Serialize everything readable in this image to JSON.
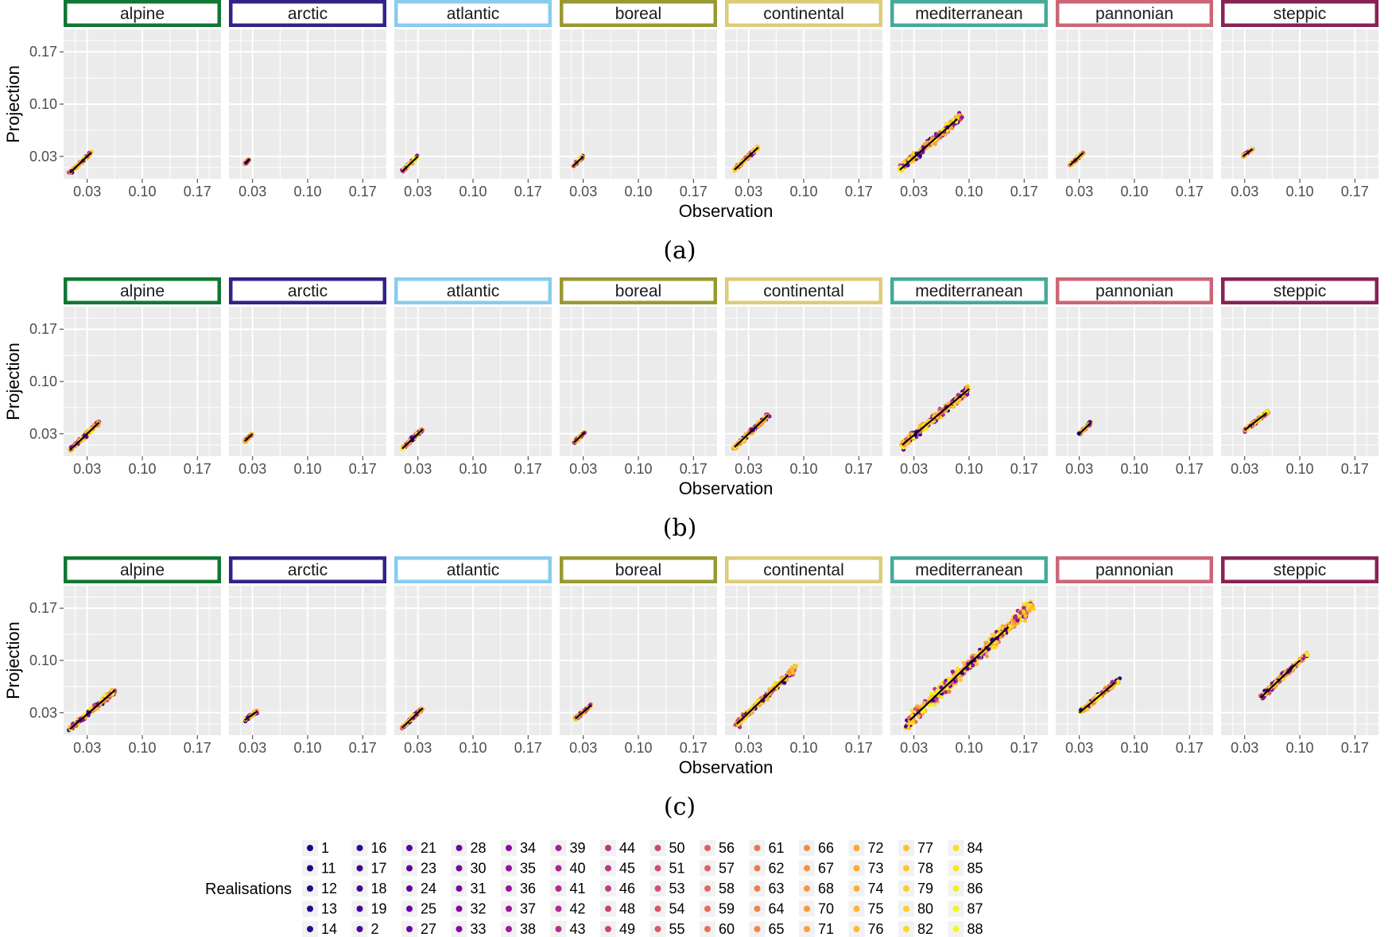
{
  "figure": {
    "xlabel": "Observation",
    "ylabel": "Projection",
    "captions": [
      "(a)",
      "(b)",
      "(c)"
    ]
  },
  "colors": {
    "panel_bg": "#ebebeb",
    "grid": "#ffffff",
    "fit_line": "#000000",
    "regions": {
      "alpine": "#117733",
      "arctic": "#332288",
      "atlantic": "#88ccee",
      "boreal": "#999933",
      "continental": "#ddcc77",
      "mediterranean": "#44aa99",
      "pannonian": "#cc6677",
      "steppic": "#882255"
    }
  },
  "legend": {
    "title": "Realisations",
    "columns": [
      [
        "1",
        "11",
        "12",
        "13",
        "14"
      ],
      [
        "16",
        "17",
        "18",
        "19",
        "2"
      ],
      [
        "21",
        "23",
        "24",
        "25",
        "27"
      ],
      [
        "28",
        "30",
        "31",
        "32",
        "33"
      ],
      [
        "34",
        "35",
        "36",
        "37",
        "38"
      ],
      [
        "39",
        "40",
        "41",
        "42",
        "43"
      ],
      [
        "44",
        "45",
        "46",
        "48",
        "49"
      ],
      [
        "50",
        "51",
        "53",
        "54",
        "55"
      ],
      [
        "56",
        "57",
        "58",
        "59",
        "60"
      ],
      [
        "61",
        "62",
        "63",
        "64",
        "65"
      ],
      [
        "66",
        "67",
        "68",
        "70",
        "71"
      ],
      [
        "72",
        "73",
        "74",
        "75",
        "76"
      ],
      [
        "77",
        "78",
        "79",
        "80",
        "82"
      ],
      [
        "84",
        "85",
        "86",
        "87",
        "88"
      ]
    ]
  },
  "chart_data": [
    {
      "type": "scatter",
      "caption": "(a)",
      "xlabel": "Observation",
      "ylabel": "Projection",
      "xlim": [
        0.0,
        0.2
      ],
      "ylim": [
        0.0,
        0.2
      ],
      "x_ticks": [
        "0.03",
        "0.10",
        "0.17"
      ],
      "y_ticks": [
        "0.03",
        "0.10",
        "0.17"
      ],
      "facets": [
        {
          "region": "alpine",
          "x_range": [
            0.008,
            0.035
          ],
          "fit": [
            [
              0.008,
              0.008
            ],
            [
              0.035,
              0.035
            ]
          ]
        },
        {
          "region": "arctic",
          "x_range": [
            0.02,
            0.026
          ],
          "fit": [
            [
              0.02,
              0.02
            ],
            [
              0.026,
              0.026
            ]
          ]
        },
        {
          "region": "atlantic",
          "x_range": [
            0.01,
            0.03
          ],
          "fit": [
            [
              0.01,
              0.01
            ],
            [
              0.03,
              0.03
            ]
          ]
        },
        {
          "region": "boreal",
          "x_range": [
            0.017,
            0.03
          ],
          "fit": [
            [
              0.017,
              0.017
            ],
            [
              0.03,
              0.03
            ]
          ]
        },
        {
          "region": "continental",
          "x_range": [
            0.012,
            0.042
          ],
          "fit": [
            [
              0.012,
              0.012
            ],
            [
              0.042,
              0.042
            ]
          ]
        },
        {
          "region": "mediterranean",
          "x_range": [
            0.012,
            0.09
          ],
          "fit": [
            [
              0.012,
              0.012
            ],
            [
              0.085,
              0.08
            ]
          ]
        },
        {
          "region": "pannonian",
          "x_range": [
            0.018,
            0.035
          ],
          "fit": [
            [
              0.018,
              0.018
            ],
            [
              0.035,
              0.035
            ]
          ]
        },
        {
          "region": "steppic",
          "x_range": [
            0.028,
            0.04
          ],
          "fit": [
            [
              0.028,
              0.03
            ],
            [
              0.04,
              0.04
            ]
          ]
        }
      ]
    },
    {
      "type": "scatter",
      "caption": "(b)",
      "xlabel": "Observation",
      "ylabel": "Projection",
      "xlim": [
        0.0,
        0.2
      ],
      "ylim": [
        0.0,
        0.2
      ],
      "x_ticks": [
        "0.03",
        "0.10",
        "0.17"
      ],
      "y_ticks": [
        "0.03",
        "0.10",
        "0.17"
      ],
      "facets": [
        {
          "region": "alpine",
          "x_range": [
            0.008,
            0.045
          ],
          "fit": [
            [
              0.008,
              0.008
            ],
            [
              0.045,
              0.045
            ]
          ]
        },
        {
          "region": "arctic",
          "x_range": [
            0.02,
            0.03
          ],
          "fit": [
            [
              0.02,
              0.02
            ],
            [
              0.03,
              0.03
            ]
          ]
        },
        {
          "region": "atlantic",
          "x_range": [
            0.01,
            0.036
          ],
          "fit": [
            [
              0.01,
              0.01
            ],
            [
              0.036,
              0.036
            ]
          ]
        },
        {
          "region": "boreal",
          "x_range": [
            0.018,
            0.032
          ],
          "fit": [
            [
              0.018,
              0.018
            ],
            [
              0.032,
              0.032
            ]
          ]
        },
        {
          "region": "continental",
          "x_range": [
            0.012,
            0.055
          ],
          "fit": [
            [
              0.012,
              0.012
            ],
            [
              0.055,
              0.055
            ]
          ]
        },
        {
          "region": "mediterranean",
          "x_range": [
            0.015,
            0.1
          ],
          "fit": [
            [
              0.015,
              0.015
            ],
            [
              0.1,
              0.09
            ]
          ]
        },
        {
          "region": "pannonian",
          "x_range": [
            0.03,
            0.045
          ],
          "fit": [
            [
              0.03,
              0.03
            ],
            [
              0.045,
              0.045
            ]
          ]
        },
        {
          "region": "steppic",
          "x_range": [
            0.03,
            0.06
          ],
          "fit": [
            [
              0.03,
              0.035
            ],
            [
              0.058,
              0.058
            ]
          ]
        }
      ]
    },
    {
      "type": "scatter",
      "caption": "(c)",
      "xlabel": "Observation",
      "ylabel": "Projection",
      "xlim": [
        0.0,
        0.2
      ],
      "ylim": [
        0.0,
        0.2
      ],
      "x_ticks": [
        "0.03",
        "0.10",
        "0.17"
      ],
      "y_ticks": [
        "0.03",
        "0.10",
        "0.17"
      ],
      "facets": [
        {
          "region": "alpine",
          "x_range": [
            0.008,
            0.065
          ],
          "fit": [
            [
              0.008,
              0.008
            ],
            [
              0.065,
              0.06
            ]
          ]
        },
        {
          "region": "arctic",
          "x_range": [
            0.02,
            0.036
          ],
          "fit": [
            [
              0.02,
              0.02
            ],
            [
              0.036,
              0.032
            ]
          ]
        },
        {
          "region": "atlantic",
          "x_range": [
            0.01,
            0.036
          ],
          "fit": [
            [
              0.01,
              0.01
            ],
            [
              0.036,
              0.036
            ]
          ]
        },
        {
          "region": "boreal",
          "x_range": [
            0.02,
            0.04
          ],
          "fit": [
            [
              0.02,
              0.022
            ],
            [
              0.04,
              0.04
            ]
          ]
        },
        {
          "region": "continental",
          "x_range": [
            0.015,
            0.09
          ],
          "fit": [
            [
              0.015,
              0.015
            ],
            [
              0.08,
              0.08
            ]
          ]
        },
        {
          "region": "mediterranean",
          "x_range": [
            0.02,
            0.18
          ],
          "fit": [
            [
              0.025,
              0.02
            ],
            [
              0.15,
              0.145
            ]
          ]
        },
        {
          "region": "pannonian",
          "x_range": [
            0.03,
            0.08
          ],
          "fit": [
            [
              0.03,
              0.03
            ],
            [
              0.075,
              0.07
            ]
          ]
        },
        {
          "region": "steppic",
          "x_range": [
            0.05,
            0.11
          ],
          "fit": [
            [
              0.05,
              0.05
            ],
            [
              0.1,
              0.1
            ]
          ]
        }
      ]
    }
  ]
}
